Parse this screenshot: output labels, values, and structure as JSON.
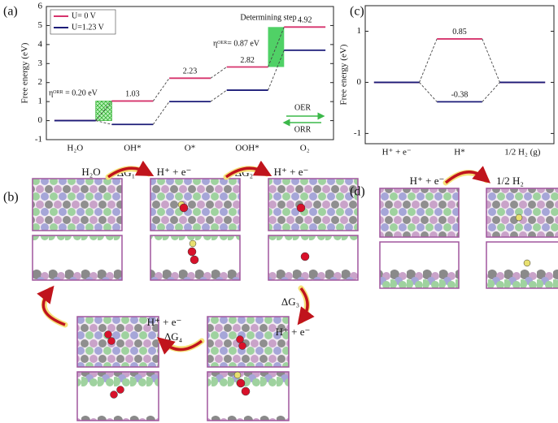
{
  "chart_data": [
    {
      "type": "step",
      "y_label": "Free energy (eV)",
      "categories": [
        "H₂O",
        "OH*",
        "O*",
        "OOH*",
        "O₂"
      ],
      "series": [
        {
          "name": "U= 0 V",
          "color": "#d6336c",
          "values": [
            0,
            1.03,
            2.23,
            2.82,
            4.92
          ],
          "value_labels": [
            null,
            "1.03",
            "2.23",
            "2.82",
            "4.92"
          ]
        },
        {
          "name": "U=1.23 V",
          "color": "#1c1c78",
          "values": [
            0,
            -0.2,
            1.0,
            1.6,
            3.7
          ]
        }
      ],
      "ylim": [
        -1,
        6
      ],
      "yticks": [
        -1,
        0,
        1,
        2,
        3,
        4,
        5,
        6
      ],
      "legend": "upper left",
      "annotations": [
        "ηᴼᴿᴿ = 0.20 eV",
        "ηᴼᴱᴿ= 0.87 eV",
        "Determining step",
        "OER",
        "ORR"
      ]
    },
    {
      "type": "step",
      "y_label": "Free energy (eV)",
      "categories": [
        "H⁺ + e⁻",
        "H*",
        "1/2 H₂ (g)"
      ],
      "series": [
        {
          "color": "#d6336c",
          "values": [
            0,
            0.85,
            0
          ],
          "value_labels": [
            null,
            "0.85",
            null
          ]
        },
        {
          "color": "#1c1c78",
          "values": [
            0,
            -0.38,
            0
          ],
          "value_labels": [
            null,
            "-0.38",
            null
          ]
        }
      ],
      "ylim": [
        -1.2,
        1.5
      ],
      "yticks": [
        -1,
        0,
        1
      ]
    }
  ],
  "panel_labels": [
    "(a)",
    "(b)",
    "(c)",
    "(d)"
  ],
  "scheme_b": [
    "H₂O",
    "ΔG₁",
    "H⁺ + e⁻",
    "ΔG₂",
    "H⁺ + e⁻",
    "ΔG₃",
    "H⁺ + e⁻",
    "H⁺ + e⁻",
    "ΔG₄"
  ],
  "scheme_d": [
    "H⁺ + e⁻",
    "1/2 H₂"
  ]
}
